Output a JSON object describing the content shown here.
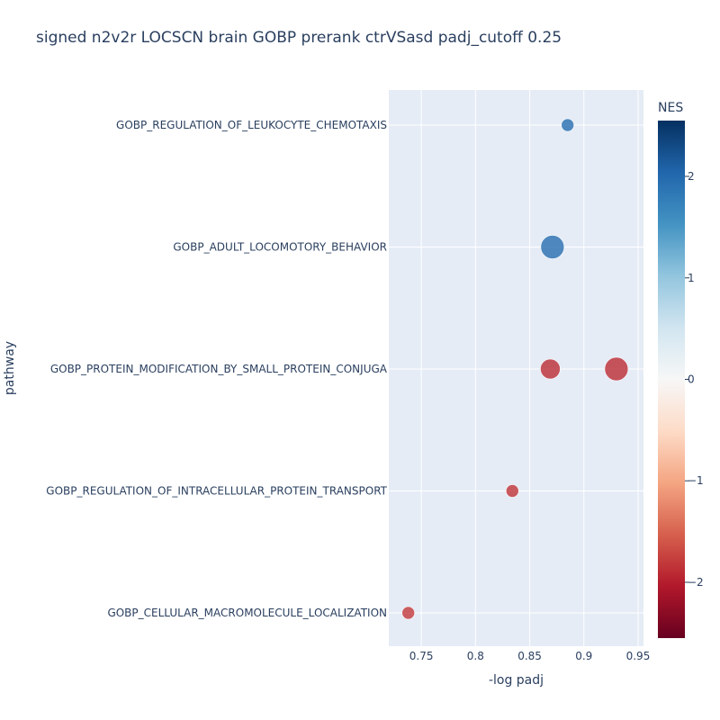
{
  "chart_data": {
    "type": "scatter",
    "title": "signed n2v2r LOCSCN brain GOBP prerank ctrVSasd padj_cutoff 0.25",
    "xlabel": "-log padj",
    "ylabel": "pathway",
    "xlim": [
      0.72,
      0.955
    ],
    "x_ticks": [
      0.75,
      0.8,
      0.85,
      0.9,
      0.95
    ],
    "x_tick_labels": [
      "0.75",
      "0.8",
      "0.85",
      "0.9",
      "0.95"
    ],
    "categories": [
      "GOBP_REGULATION_OF_LEUKOCYTE_CHEMOTAXIS",
      "GOBP_ADULT_LOCOMOTORY_BEHAVIOR",
      "GOBP_PROTEIN_MODIFICATION_BY_SMALL_PROTEIN_CONJUGA",
      "GOBP_REGULATION_OF_INTRACELLULAR_PROTEIN_TRANSPORT",
      "GOBP_CELLULAR_MACROMOLECULE_LOCALIZATION"
    ],
    "points": [
      {
        "x": 0.885,
        "category": "GOBP_REGULATION_OF_LEUKOCYTE_CHEMOTAXIS",
        "nes": 1.95,
        "size": 1
      },
      {
        "x": 0.871,
        "category": "GOBP_ADULT_LOCOMOTORY_BEHAVIOR",
        "nes": 1.95,
        "size": 3
      },
      {
        "x": 0.869,
        "category": "GOBP_PROTEIN_MODIFICATION_BY_SMALL_PROTEIN_CONJUGA",
        "nes": -1.9,
        "size": 2
      },
      {
        "x": 0.93,
        "category": "GOBP_PROTEIN_MODIFICATION_BY_SMALL_PROTEIN_CONJUGA",
        "nes": -1.9,
        "size": 3
      },
      {
        "x": 0.834,
        "category": "GOBP_REGULATION_OF_INTRACELLULAR_PROTEIN_TRANSPORT",
        "nes": -1.85,
        "size": 1
      },
      {
        "x": 0.738,
        "category": "GOBP_CELLULAR_MACROMOLECULE_LOCALIZATION",
        "nes": -1.8,
        "size": 1
      }
    ],
    "colorbar": {
      "title": "NES",
      "range": [
        -2.55,
        2.55
      ],
      "ticks": [
        2,
        1,
        0,
        -1,
        -2
      ],
      "tick_labels": [
        "2",
        "1",
        "0",
        "−1",
        "−2"
      ],
      "colorscale": [
        "#67001f",
        "#b2182b",
        "#d6604d",
        "#f4a582",
        "#fddbc7",
        "#f7f7f7",
        "#d1e5f0",
        "#92c5de",
        "#4393c3",
        "#2166ac",
        "#053061"
      ]
    },
    "grid": true,
    "legend": "colorbar-right"
  }
}
